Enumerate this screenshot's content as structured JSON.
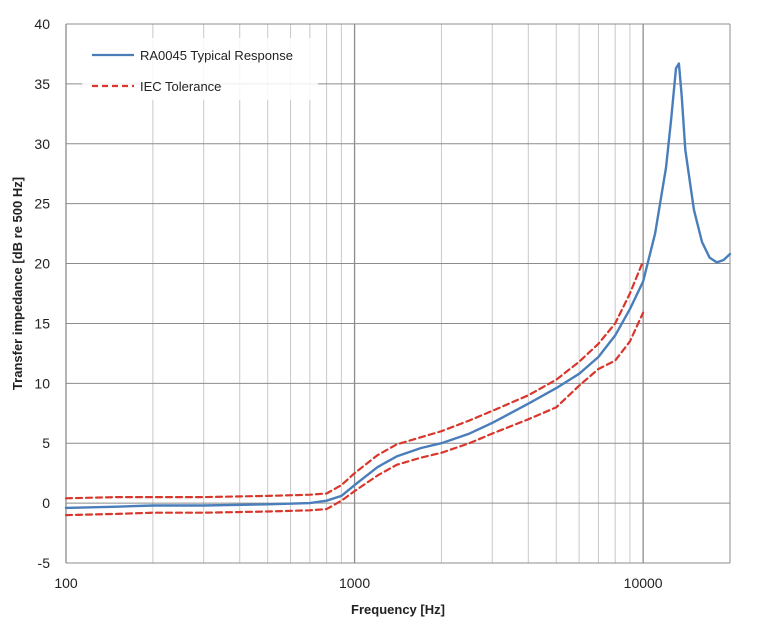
{
  "chart_data": {
    "type": "line",
    "title": "",
    "xlabel": "Frequency [Hz]",
    "ylabel": "Transfer impedance [dB re 500 Hz]",
    "x_scale": "log",
    "xlim": [
      100,
      20000
    ],
    "ylim": [
      -5,
      40
    ],
    "x_ticks": [
      100,
      1000,
      10000
    ],
    "y_ticks": [
      -5,
      0,
      5,
      10,
      15,
      20,
      25,
      30,
      35,
      40
    ],
    "grid": true,
    "legend_position": "top-left",
    "series": [
      {
        "name": "RA0045 Typical Response",
        "color": "#4a7ebb",
        "style": "solid",
        "x": [
          100,
          150,
          200,
          300,
          500,
          700,
          800,
          900,
          1000,
          1200,
          1400,
          1700,
          2000,
          2500,
          3000,
          4000,
          5000,
          6000,
          7000,
          8000,
          9000,
          10000,
          11000,
          12000,
          12500,
          13000,
          13300,
          13600,
          14000,
          15000,
          16000,
          17000,
          18000,
          19000,
          20000
        ],
        "y": [
          -0.4,
          -0.3,
          -0.2,
          -0.2,
          -0.1,
          0.0,
          0.2,
          0.6,
          1.5,
          3.0,
          3.9,
          4.6,
          5.0,
          5.8,
          6.7,
          8.3,
          9.6,
          10.8,
          12.2,
          14.0,
          16.2,
          18.5,
          22.5,
          28.0,
          32.0,
          36.3,
          36.7,
          34.0,
          29.5,
          24.5,
          21.8,
          20.5,
          20.1,
          20.3,
          20.8
        ]
      },
      {
        "name": "IEC Tolerance",
        "color": "#d9372c",
        "style": "dashed",
        "x": [
          100,
          150,
          200,
          300,
          500,
          700,
          800,
          900,
          1000,
          1200,
          1400,
          1700,
          2000,
          2500,
          3000,
          4000,
          5000,
          6000,
          7000,
          8000,
          9000,
          10000
        ],
        "y": [
          0.4,
          0.5,
          0.5,
          0.5,
          0.6,
          0.7,
          0.8,
          1.5,
          2.5,
          4.0,
          4.9,
          5.5,
          6.0,
          6.9,
          7.7,
          9.0,
          10.3,
          11.8,
          13.3,
          15.0,
          17.5,
          20.2
        ]
      },
      {
        "name": "",
        "color": "#d9372c",
        "style": "dashed",
        "x": [
          100,
          150,
          200,
          300,
          500,
          700,
          800,
          900,
          1000,
          1200,
          1400,
          1700,
          2000,
          2500,
          3000,
          4000,
          5000,
          6000,
          7000,
          8000,
          9000,
          10000
        ],
        "y": [
          -1.0,
          -0.9,
          -0.8,
          -0.8,
          -0.7,
          -0.6,
          -0.5,
          0.2,
          1.0,
          2.3,
          3.2,
          3.8,
          4.2,
          5.0,
          5.8,
          7.0,
          8.0,
          9.8,
          11.2,
          11.9,
          13.5,
          15.9
        ]
      }
    ]
  }
}
